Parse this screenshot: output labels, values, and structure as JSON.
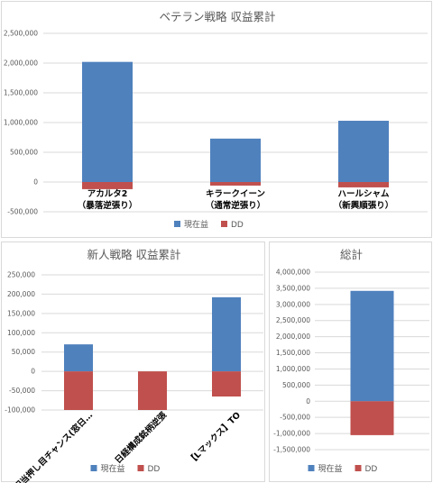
{
  "chart_data": [
    {
      "type": "bar",
      "title": "ベテラン戦略 収益累計",
      "categories": [
        [
          "アカルタ2",
          "（暴落逆張り）"
        ],
        [
          "キラークイーン",
          "（通常逆張り）"
        ],
        [
          "ハールシャム",
          "（新興順張り）"
        ]
      ],
      "series": [
        {
          "name": "現在益",
          "color": "#4f81bd",
          "values": [
            2020000,
            730000,
            1030000
          ]
        },
        {
          "name": "DD",
          "color": "#c0504d",
          "values": [
            -120000,
            -60000,
            -90000
          ]
        }
      ],
      "stacked": true,
      "ylim": [
        -500000,
        2500000
      ],
      "yticks": [
        "-500,000",
        "0",
        "500,000",
        "1,000,000",
        "1,500,000",
        "2,000,000",
        "2,500,000"
      ],
      "grid": true,
      "legend": "bottom"
    },
    {
      "type": "bar",
      "title": "新人戦略 収益累計",
      "categories": [
        [
          "高配当押し目チャンス(窓日…"
        ],
        [
          "日経構成銘柄逆張"
        ],
        [
          "【Lマックス】TO"
        ]
      ],
      "series": [
        {
          "name": "現在益",
          "color": "#4f81bd",
          "values": [
            70000,
            0,
            192000
          ]
        },
        {
          "name": "DD",
          "color": "#c0504d",
          "values": [
            -100000,
            -100000,
            -65000
          ]
        }
      ],
      "stacked": true,
      "ylim": [
        -100000,
        250000
      ],
      "yticks": [
        "-100,000",
        "-50,000",
        "0",
        "50,000",
        "100,000",
        "150,000",
        "200,000",
        "250,000"
      ],
      "grid": true,
      "legend": "bottom"
    },
    {
      "type": "bar",
      "title": "総計",
      "categories": [
        [
          ""
        ]
      ],
      "series": [
        {
          "name": "現在益",
          "color": "#4f81bd",
          "values": [
            3420000
          ]
        },
        {
          "name": "DD",
          "color": "#c0504d",
          "values": [
            -1050000
          ]
        }
      ],
      "stacked": true,
      "ylim": [
        -1500000,
        4000000
      ],
      "yticks": [
        "-1,500,000",
        "-1,000,000",
        "-500,000",
        "0",
        "500,000",
        "1,000,000",
        "1,500,000",
        "2,000,000",
        "2,500,000",
        "3,000,000",
        "3,500,000",
        "4,000,000"
      ],
      "grid": true,
      "legend": "bottom"
    }
  ]
}
